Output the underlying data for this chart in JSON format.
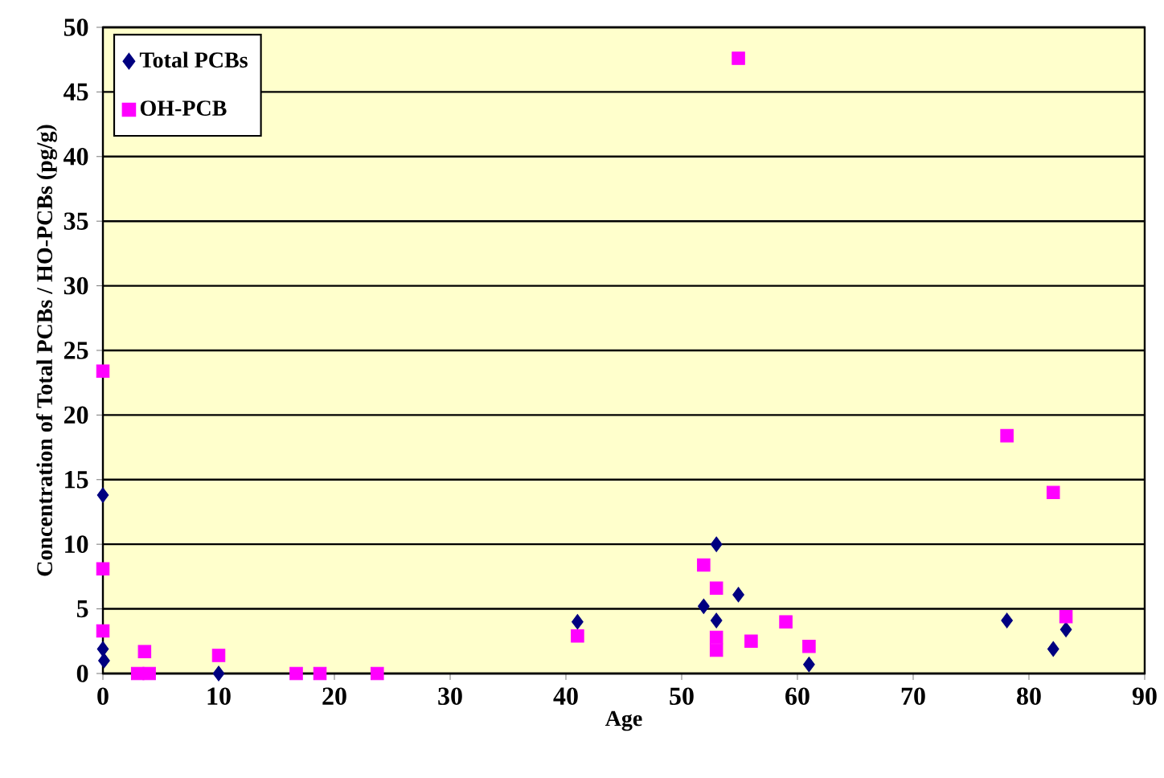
{
  "chart_data": {
    "type": "scatter",
    "xlabel": "Age",
    "ylabel": "Concentration of Total PCBs / HO-PCBs (pg/g)",
    "xlim": [
      0,
      90
    ],
    "xticks": [
      0,
      10,
      20,
      30,
      40,
      50,
      60,
      70,
      80,
      90
    ],
    "ylim": [
      0,
      50
    ],
    "yticks": [
      0,
      5,
      10,
      15,
      20,
      25,
      30,
      35,
      40,
      45,
      50
    ],
    "grid": "y",
    "legend": "top left",
    "series": [
      {
        "name": "Total PCBs",
        "color": "#000080",
        "marker": "diamond",
        "x": [
          0,
          0,
          0.1,
          10,
          41,
          51.9,
          53,
          53,
          54.9,
          61,
          78.1,
          82.1,
          83.2
        ],
        "values": [
          13.8,
          1.9,
          1.0,
          0,
          4.0,
          5.2,
          10.0,
          4.1,
          6.1,
          0.7,
          4.1,
          1.9,
          3.4
        ]
      },
      {
        "name": "OH-PCB",
        "color": "#ff00ff",
        "marker": "square",
        "x": [
          0,
          0,
          0,
          3,
          4,
          3.6,
          10,
          16.7,
          18.75,
          23.7,
          41,
          51.9,
          53,
          53,
          53,
          54.9,
          56,
          59,
          61,
          78.1,
          82.1,
          83.2
        ],
        "values": [
          23.4,
          8.1,
          3.3,
          0,
          0,
          1.7,
          1.4,
          0,
          0,
          0,
          2.9,
          8.4,
          6.6,
          2.8,
          1.8,
          47.6,
          2.5,
          4.0,
          2.1,
          18.4,
          14.0,
          4.4
        ]
      }
    ]
  }
}
